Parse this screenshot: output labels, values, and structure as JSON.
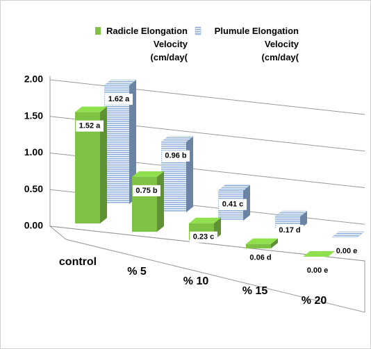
{
  "chart_data": {
    "type": "bar3d",
    "categories": [
      "control",
      "% 5",
      "% 10",
      "% 15",
      "% 20"
    ],
    "series": [
      {
        "name": "Radicle Elongation\nVelocity\n(cm/day(",
        "color": "#7dc242",
        "hatch": false,
        "values": [
          1.52,
          0.75,
          0.23,
          0.06,
          0.0
        ],
        "value_labels": [
          "1.52 a",
          "0.75 b",
          "0.23 c",
          "0.06 d",
          "0.00 e"
        ]
      },
      {
        "name": "Plumule Elongation\nVelocity\n(cm/day(",
        "color": "#8fb0dc",
        "hatch": true,
        "values": [
          1.62,
          0.96,
          0.41,
          0.17,
          0.0
        ],
        "value_labels": [
          "1.62 a",
          "0.96 b",
          "0.41 c",
          "0.17 d",
          "0.00 e"
        ]
      }
    ],
    "ylim": [
      0,
      2
    ],
    "yticks": [
      {
        "value": 0,
        "label": "0.00"
      },
      {
        "value": 0.5,
        "label": "0.50"
      },
      {
        "value": 1,
        "label": "1.00"
      },
      {
        "value": 1.5,
        "label": "1.50"
      },
      {
        "value": 2,
        "label": "2.00"
      }
    ],
    "grid": true
  }
}
